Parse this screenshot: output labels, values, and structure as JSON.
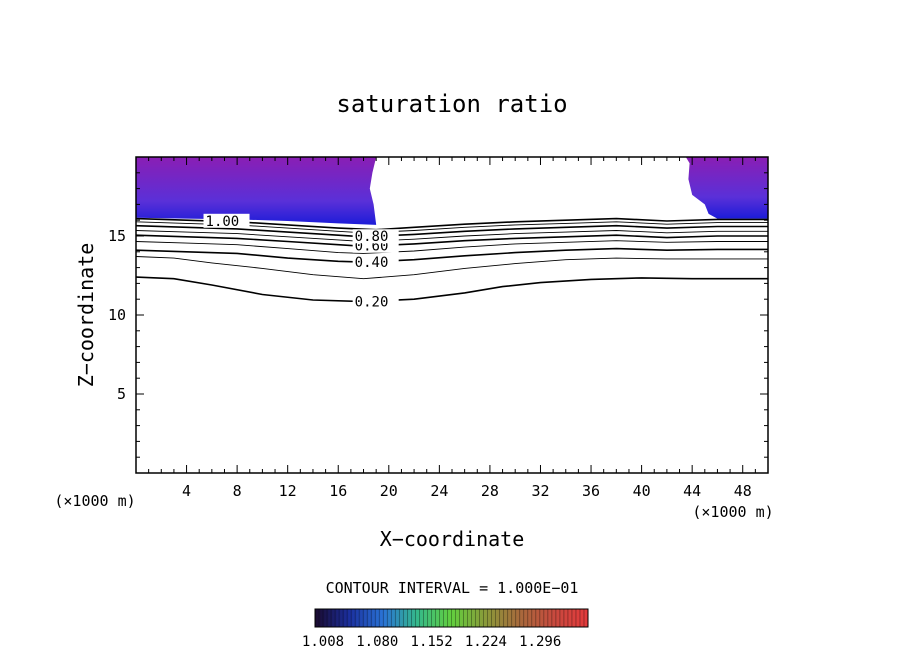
{
  "chart_data": {
    "type": "contour",
    "title": "saturation ratio",
    "xlabel": "X−coordinate",
    "ylabel": "Z−coordinate",
    "x_unit": "(×1000 m)",
    "x_ticks": [
      4,
      8,
      12,
      16,
      20,
      24,
      28,
      32,
      36,
      40,
      44,
      48
    ],
    "y_ticks": [
      5,
      10,
      15
    ],
    "xlim": [
      0,
      50
    ],
    "ylim": [
      0,
      20
    ],
    "contour_interval_text": "CONTOUR INTERVAL = 1.000E−01",
    "colorbar": {
      "labels": [
        "1.008",
        "1.080",
        "1.152",
        "1.224",
        "1.296"
      ],
      "colors": [
        "#1a0a2e",
        "#1b2f9e",
        "#2a73d6",
        "#35b98a",
        "#62cf3e",
        "#8a9a3a",
        "#a86a3c",
        "#c84a3e",
        "#e43a3c"
      ]
    },
    "fill_colors": {
      "deep": "#1c1cd8",
      "mid": "#5a30d8",
      "light": "#8a1eb4"
    },
    "contours": [
      {
        "level": 0.2,
        "label": "0.20",
        "label_x": 17.3,
        "points": [
          [
            0,
            12.4
          ],
          [
            3,
            12.3
          ],
          [
            6,
            11.9
          ],
          [
            10,
            11.3
          ],
          [
            14,
            10.95
          ],
          [
            18,
            10.85
          ],
          [
            22,
            11.0
          ],
          [
            26,
            11.4
          ],
          [
            29,
            11.8
          ],
          [
            32,
            12.05
          ],
          [
            36,
            12.25
          ],
          [
            40,
            12.35
          ],
          [
            44,
            12.3
          ],
          [
            48,
            12.3
          ],
          [
            50,
            12.3
          ]
        ]
      },
      {
        "level": 0.3,
        "label": "",
        "label_x": 0,
        "points": [
          [
            0,
            13.7
          ],
          [
            3,
            13.6
          ],
          [
            6,
            13.3
          ],
          [
            10,
            12.95
          ],
          [
            14,
            12.55
          ],
          [
            18,
            12.3
          ],
          [
            22,
            12.55
          ],
          [
            26,
            12.95
          ],
          [
            30,
            13.25
          ],
          [
            34,
            13.5
          ],
          [
            38,
            13.6
          ],
          [
            42,
            13.55
          ],
          [
            46,
            13.55
          ],
          [
            50,
            13.55
          ]
        ]
      },
      {
        "level": 0.4,
        "label": "0.40",
        "label_x": 17.3,
        "points": [
          [
            0,
            14.1
          ],
          [
            4,
            14.0
          ],
          [
            8,
            13.9
          ],
          [
            12,
            13.6
          ],
          [
            16,
            13.4
          ],
          [
            18,
            13.35
          ],
          [
            22,
            13.5
          ],
          [
            26,
            13.75
          ],
          [
            30,
            13.95
          ],
          [
            34,
            14.1
          ],
          [
            38,
            14.2
          ],
          [
            42,
            14.1
          ],
          [
            46,
            14.15
          ],
          [
            50,
            14.15
          ]
        ]
      },
      {
        "level": 0.5,
        "label": "",
        "label_x": 0,
        "points": [
          [
            0,
            14.65
          ],
          [
            4,
            14.55
          ],
          [
            8,
            14.45
          ],
          [
            12,
            14.2
          ],
          [
            16,
            13.95
          ],
          [
            18,
            13.9
          ],
          [
            22,
            14.05
          ],
          [
            26,
            14.3
          ],
          [
            30,
            14.5
          ],
          [
            34,
            14.6
          ],
          [
            38,
            14.7
          ],
          [
            42,
            14.6
          ],
          [
            46,
            14.65
          ],
          [
            50,
            14.65
          ]
        ]
      },
      {
        "level": 0.6,
        "label": "0.60",
        "label_x": 17.3,
        "points": [
          [
            0,
            15.05
          ],
          [
            4,
            14.95
          ],
          [
            8,
            14.85
          ],
          [
            12,
            14.65
          ],
          [
            16,
            14.45
          ],
          [
            18,
            14.35
          ],
          [
            22,
            14.5
          ],
          [
            26,
            14.7
          ],
          [
            30,
            14.85
          ],
          [
            34,
            14.95
          ],
          [
            38,
            15.05
          ],
          [
            42,
            14.9
          ],
          [
            46,
            15.0
          ],
          [
            50,
            15.0
          ]
        ]
      },
      {
        "level": 0.7,
        "label": "",
        "label_x": 0,
        "points": [
          [
            0,
            15.35
          ],
          [
            4,
            15.25
          ],
          [
            8,
            15.15
          ],
          [
            12,
            14.95
          ],
          [
            16,
            14.75
          ],
          [
            18,
            14.65
          ],
          [
            22,
            14.8
          ],
          [
            26,
            15.0
          ],
          [
            30,
            15.15
          ],
          [
            34,
            15.25
          ],
          [
            38,
            15.35
          ],
          [
            42,
            15.2
          ],
          [
            46,
            15.3
          ],
          [
            50,
            15.3
          ]
        ]
      },
      {
        "level": 0.8,
        "label": "0.80",
        "label_x": 17.3,
        "points": [
          [
            0,
            15.65
          ],
          [
            4,
            15.55
          ],
          [
            8,
            15.45
          ],
          [
            12,
            15.25
          ],
          [
            16,
            15.05
          ],
          [
            18,
            14.95
          ],
          [
            22,
            15.1
          ],
          [
            26,
            15.3
          ],
          [
            30,
            15.45
          ],
          [
            34,
            15.55
          ],
          [
            38,
            15.65
          ],
          [
            42,
            15.5
          ],
          [
            46,
            15.6
          ],
          [
            50,
            15.6
          ]
        ]
      },
      {
        "level": 0.9,
        "label": "",
        "label_x": 0,
        "points": [
          [
            0,
            15.9
          ],
          [
            4,
            15.8
          ],
          [
            8,
            15.7
          ],
          [
            12,
            15.5
          ],
          [
            16,
            15.3
          ],
          [
            18,
            15.2
          ],
          [
            22,
            15.35
          ],
          [
            26,
            15.55
          ],
          [
            30,
            15.7
          ],
          [
            34,
            15.8
          ],
          [
            38,
            15.9
          ],
          [
            42,
            15.75
          ],
          [
            46,
            15.85
          ],
          [
            50,
            15.85
          ]
        ]
      },
      {
        "level": 1.0,
        "label": "1.00",
        "label_x": 5.5,
        "points": [
          [
            0,
            16.1
          ],
          [
            4,
            16.0
          ],
          [
            8,
            15.9
          ],
          [
            12,
            15.7
          ],
          [
            16,
            15.5
          ],
          [
            19,
            15.4
          ],
          [
            22,
            15.55
          ],
          [
            26,
            15.75
          ],
          [
            30,
            15.9
          ],
          [
            34,
            16.0
          ],
          [
            38,
            16.1
          ],
          [
            42,
            15.95
          ],
          [
            46,
            16.05
          ],
          [
            50,
            16.05
          ]
        ]
      }
    ],
    "supersat_regions": [
      {
        "points": [
          [
            0,
            20
          ],
          [
            19.0,
            20
          ],
          [
            18.7,
            19.0
          ],
          [
            18.5,
            18.0
          ],
          [
            18.8,
            17.0
          ],
          [
            19.0,
            15.7
          ],
          [
            16,
            15.8
          ],
          [
            12,
            15.95
          ],
          [
            8,
            16.05
          ],
          [
            4,
            16.1
          ],
          [
            0,
            16.15
          ]
        ]
      },
      {
        "points": [
          [
            43.5,
            20
          ],
          [
            50,
            20
          ],
          [
            50,
            16.1
          ],
          [
            48,
            16.1
          ],
          [
            46,
            16.1
          ],
          [
            45.3,
            16.4
          ],
          [
            45.0,
            17.0
          ],
          [
            44.0,
            17.6
          ],
          [
            43.7,
            18.6
          ],
          [
            43.8,
            19.6
          ]
        ]
      }
    ]
  }
}
